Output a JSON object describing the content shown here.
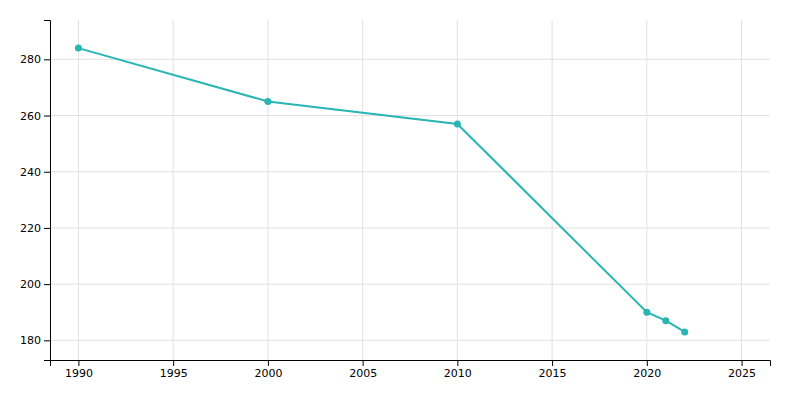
{
  "chart_data": {
    "type": "line",
    "x": [
      1990,
      2000,
      2010,
      2020,
      2021,
      2022
    ],
    "values": [
      284,
      265,
      257,
      190,
      187,
      183
    ],
    "color": "#2ab5b5",
    "marker": "circle",
    "xlim": [
      1988.5,
      2026.5
    ],
    "ylim": [
      173,
      294
    ],
    "xticks": [
      1990,
      1995,
      2000,
      2005,
      2010,
      2015,
      2020,
      2025
    ],
    "yticks": [
      180,
      200,
      220,
      240,
      260,
      280
    ],
    "grid": true
  }
}
